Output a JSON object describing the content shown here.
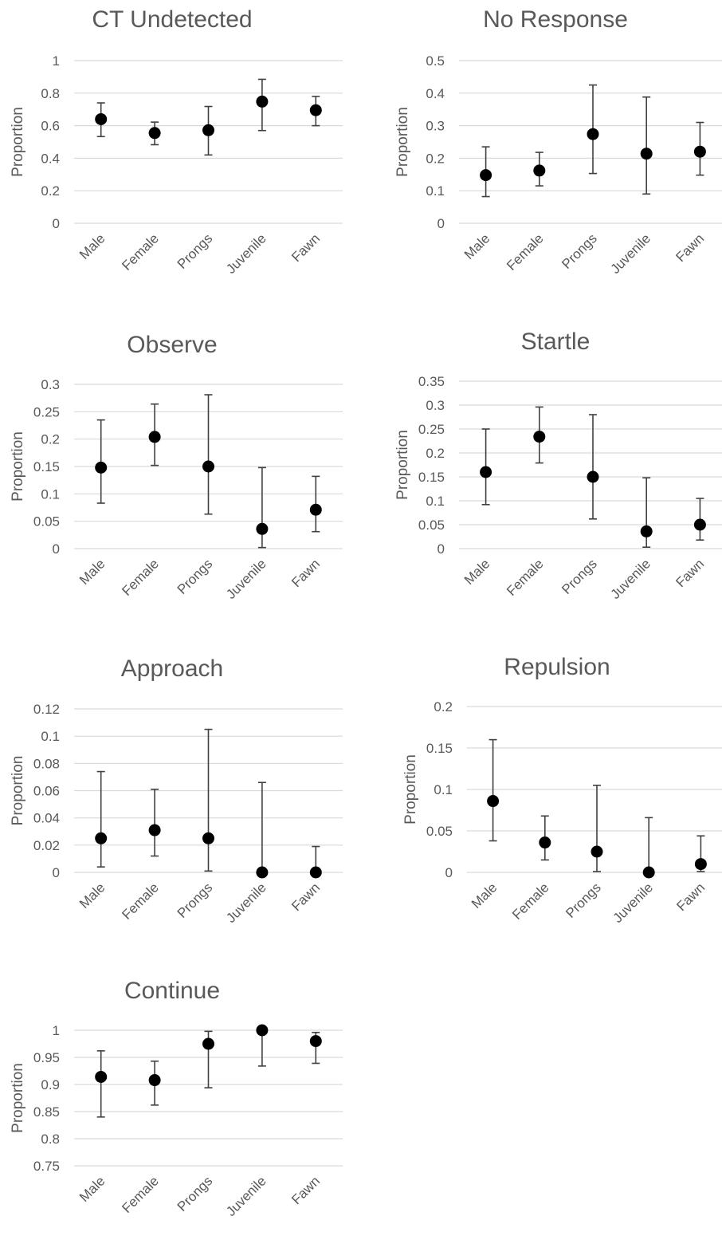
{
  "chart_data": [
    {
      "type": "scatter",
      "title": "CT Undetected",
      "ylabel": "Proportion",
      "categories": [
        "Male",
        "Female",
        "Prongs",
        "Juvenile",
        "Fawn"
      ],
      "yticks": [
        "0",
        "0.2",
        "0.4",
        "0.6",
        "0.8",
        "1"
      ],
      "ylim": [
        0,
        1
      ],
      "values": [
        0.64,
        0.555,
        0.572,
        0.748,
        0.695
      ],
      "err_low": [
        0.533,
        0.483,
        0.42,
        0.57,
        0.6
      ],
      "err_high": [
        0.74,
        0.622,
        0.718,
        0.885,
        0.78
      ]
    },
    {
      "type": "scatter",
      "title": "No Response",
      "ylabel": "Proportion",
      "categories": [
        "Male",
        "Female",
        "Prongs",
        "Juvenile",
        "Fawn"
      ],
      "yticks": [
        "0",
        "0.1",
        "0.2",
        "0.3",
        "0.4",
        "0.5"
      ],
      "ylim": [
        0,
        0.5
      ],
      "values": [
        0.148,
        0.162,
        0.274,
        0.214,
        0.22
      ],
      "err_low": [
        0.082,
        0.115,
        0.153,
        0.09,
        0.148
      ],
      "err_high": [
        0.235,
        0.218,
        0.425,
        0.388,
        0.31
      ]
    },
    {
      "type": "scatter",
      "title": "Observe",
      "ylabel": "Proportion",
      "categories": [
        "Male",
        "Female",
        "Prongs",
        "Juvenile",
        "Fawn"
      ],
      "yticks": [
        "0",
        "0.05",
        "0.1",
        "0.15",
        "0.2",
        "0.25",
        "0.3"
      ],
      "ylim": [
        0,
        0.3
      ],
      "values": [
        0.148,
        0.204,
        0.15,
        0.036,
        0.071
      ],
      "err_low": [
        0.083,
        0.152,
        0.063,
        0.002,
        0.031
      ],
      "err_high": [
        0.235,
        0.264,
        0.281,
        0.148,
        0.132
      ]
    },
    {
      "type": "scatter",
      "title": "Startle",
      "ylabel": "Proportion",
      "categories": [
        "Male",
        "Female",
        "Prongs",
        "Juvenile",
        "Fawn"
      ],
      "yticks": [
        "0",
        "0.05",
        "0.1",
        "0.15",
        "0.2",
        "0.25",
        "0.3",
        "0.35"
      ],
      "ylim": [
        0,
        0.35
      ],
      "values": [
        0.16,
        0.234,
        0.15,
        0.036,
        0.05
      ],
      "err_low": [
        0.092,
        0.179,
        0.062,
        0.003,
        0.018
      ],
      "err_high": [
        0.25,
        0.296,
        0.28,
        0.148,
        0.105
      ]
    },
    {
      "type": "scatter",
      "title": "Approach",
      "ylabel": "Proportion",
      "categories": [
        "Male",
        "Female",
        "Prongs",
        "Juvenile",
        "Fawn"
      ],
      "yticks": [
        "0",
        "0.02",
        "0.04",
        "0.06",
        "0.08",
        "0.1",
        "0.12"
      ],
      "ylim": [
        0,
        0.12
      ],
      "values": [
        0.025,
        0.031,
        0.025,
        0.0,
        0.0
      ],
      "err_low": [
        0.004,
        0.012,
        0.001,
        0.0,
        0.0
      ],
      "err_high": [
        0.074,
        0.061,
        0.105,
        0.066,
        0.019
      ]
    },
    {
      "type": "scatter",
      "title": "Repulsion",
      "ylabel": "Proportion",
      "categories": [
        "Male",
        "Female",
        "Prongs",
        "Juvenile",
        "Fawn"
      ],
      "yticks": [
        "0",
        "0.05",
        "0.1",
        "0.15",
        "0.2"
      ],
      "ylim": [
        0,
        0.2
      ],
      "values": [
        0.086,
        0.036,
        0.025,
        0.0,
        0.01
      ],
      "err_low": [
        0.038,
        0.015,
        0.001,
        0.0,
        0.001
      ],
      "err_high": [
        0.16,
        0.068,
        0.105,
        0.066,
        0.044
      ]
    },
    {
      "type": "scatter",
      "title": "Continue",
      "ylabel": "Proportion",
      "categories": [
        "Male",
        "Female",
        "Prongs",
        "Juvenile",
        "Fawn"
      ],
      "yticks": [
        "0.75",
        "0.8",
        "0.85",
        "0.9",
        "0.95",
        "1"
      ],
      "ylim": [
        0.75,
        1
      ],
      "values": [
        0.914,
        0.908,
        0.975,
        1.0,
        0.98
      ],
      "err_low": [
        0.84,
        0.862,
        0.894,
        0.934,
        0.939
      ],
      "err_high": [
        0.962,
        0.943,
        0.998,
        1.0,
        0.996
      ]
    }
  ],
  "colors": {
    "point": "#000000",
    "errorbar": "#404040",
    "gridline": "#d9d9d9",
    "text": "#595959"
  }
}
